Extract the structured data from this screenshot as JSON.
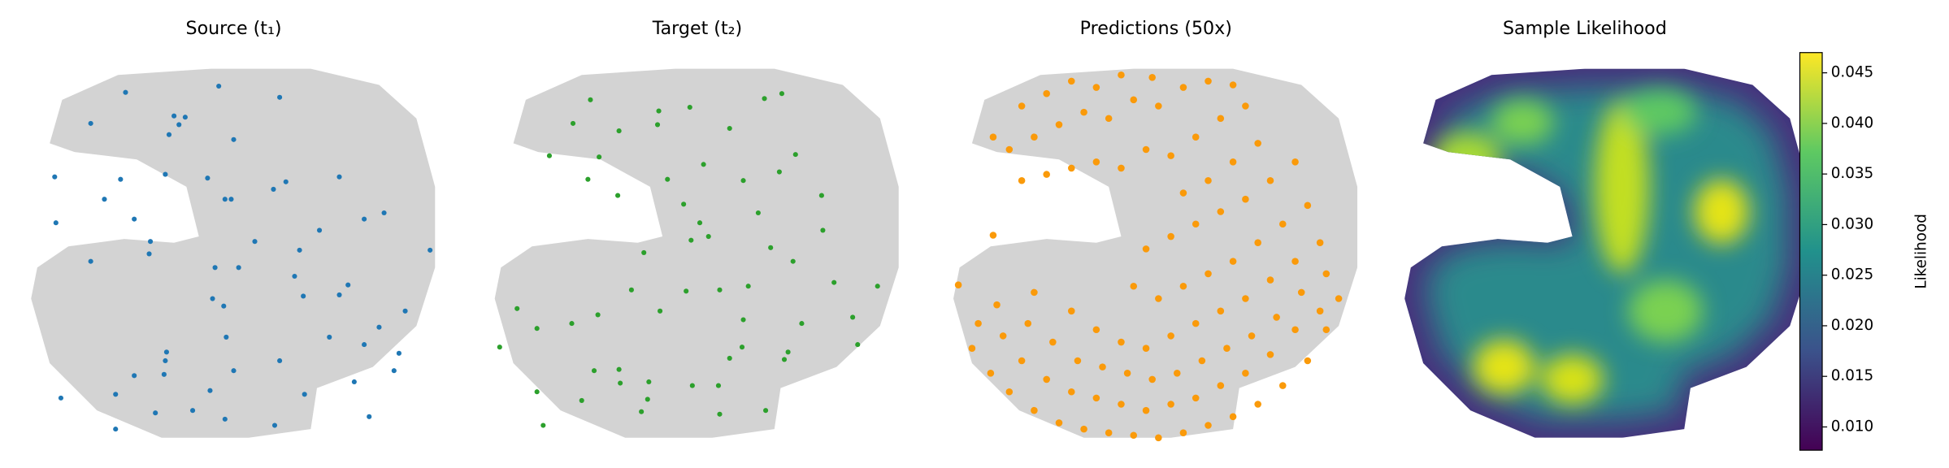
{
  "chart_data": [
    {
      "type": "scatter",
      "title": "Source (t₁)",
      "color": "#1f77b4",
      "xlim": [
        0,
        340
      ],
      "ylim": [
        310,
        0
      ],
      "x": [
        73,
        29,
        105,
        135,
        161,
        201,
        277,
        73,
        88,
        112,
        149,
        225,
        265,
        113,
        114,
        168,
        205,
        297,
        301,
        162,
        245,
        273,
        285,
        306,
        160,
        151,
        224,
        253,
        260,
        217,
        153,
        172,
        53,
        100,
        101,
        185,
        326,
        221,
        237,
        25,
        88,
        273,
        289,
        64,
        161,
        166,
        200,
        210,
        24,
        77,
        113,
        147,
        253,
        168,
        116,
        124,
        129,
        120,
        53,
        205,
        81,
        156
      ],
      "y": [
        15,
        40,
        28,
        30,
        23,
        18,
        25,
        43,
        58,
        59,
        46,
        43,
        53,
        70,
        77,
        62,
        70,
        62,
        76,
        89,
        89,
        83,
        97,
        110,
        114,
        120,
        122,
        123,
        131,
        138,
        145,
        145,
        150,
        156,
        166,
        166,
        159,
        159,
        175,
        181,
        184,
        184,
        189,
        200,
        200,
        200,
        208,
        214,
        218,
        216,
        220,
        217,
        218,
        248,
        252,
        260,
        266,
        267,
        261,
        282,
        286,
        291
      ]
    },
    {
      "type": "scatter",
      "title": "Target (t₂)",
      "color": "#2ca02c",
      "xlim": [
        0,
        340
      ],
      "ylim": [
        310,
        0
      ],
      "x": [
        44,
        75,
        123,
        186,
        223,
        128,
        39,
        106,
        129,
        164,
        185,
        85,
        105,
        9,
        39,
        67,
        88,
        23,
        138,
        194,
        204,
        238,
        241,
        297,
        252,
        205,
        293,
        115,
        159,
        186,
        209,
        313,
        278,
        125,
        163,
        245,
        227,
        177,
        170,
        269,
        157,
        217,
        104,
        268,
        80,
        144,
        205,
        234,
        49,
        89,
        173,
        247,
        105,
        136,
        68,
        194,
        137,
        162,
        82,
        222,
        236
      ],
      "y": [
        18,
        38,
        29,
        27,
        30,
        39,
        45,
        52,
        53,
        50,
        50,
        62,
        63,
        81,
        96,
        100,
        107,
        112,
        110,
        72,
        81,
        71,
        77,
        83,
        100,
        103,
        105,
        127,
        126,
        127,
        130,
        130,
        133,
        157,
        167,
        150,
        161,
        170,
        181,
        175,
        196,
        189,
        203,
        203,
        216,
        216,
        215,
        222,
        235,
        234,
        228,
        236,
        255,
        260,
        261,
        257,
        271,
        274,
        280,
        281,
        285
      ]
    },
    {
      "type": "scatter",
      "title": "Predictions (50x)",
      "color": "#fa9a0a",
      "xlim": [
        0,
        340
      ],
      "ylim": [
        310,
        0
      ],
      "x": [
        20,
        35,
        50,
        70,
        90,
        110,
        130,
        150,
        170,
        190,
        210,
        230,
        250,
        270,
        290,
        305,
        315,
        25,
        45,
        60,
        80,
        100,
        120,
        140,
        160,
        180,
        200,
        220,
        240,
        260,
        280,
        300,
        40,
        65,
        85,
        105,
        125,
        145,
        165,
        185,
        205,
        225,
        245,
        265,
        285,
        305,
        70,
        100,
        120,
        140,
        160,
        180,
        200,
        220,
        240,
        260,
        280,
        300,
        150,
        170,
        190,
        210,
        230,
        250,
        270,
        290,
        160,
        180,
        200,
        220,
        240,
        260,
        280,
        9,
        37,
        37,
        190,
        210,
        230,
        250,
        60,
        80,
        100,
        120,
        140,
        160,
        180,
        200,
        220,
        240,
        50,
        70,
        90,
        110,
        130,
        150,
        170,
        190,
        210,
        230,
        60,
        80,
        100,
        120,
        140,
        165
      ],
      "y": [
        80,
        60,
        45,
        30,
        20,
        15,
        12,
        10,
        8,
        12,
        18,
        25,
        35,
        50,
        70,
        95,
        120,
        100,
        90,
        70,
        55,
        45,
        40,
        35,
        30,
        35,
        40,
        50,
        60,
        75,
        95,
        110,
        115,
        100,
        85,
        70,
        65,
        60,
        55,
        60,
        70,
        80,
        90,
        105,
        125,
        140,
        125,
        110,
        95,
        85,
        80,
        90,
        100,
        110,
        120,
        135,
        150,
        165,
        130,
        120,
        130,
        140,
        150,
        165,
        180,
        195,
        160,
        170,
        180,
        190,
        200,
        215,
        230,
        131,
        171,
        250,
        205,
        215,
        230,
        245,
        215,
        220,
        225,
        230,
        225,
        240,
        235,
        250,
        265,
        275,
        240,
        250,
        260,
        270,
        265,
        280,
        275,
        290,
        295,
        292,
        275,
        285,
        295,
        290,
        300,
        298
      ]
    },
    {
      "type": "heatmap",
      "title": "Sample Likelihood",
      "colorbar_label": "Likelihood",
      "clim": [
        0.0077,
        0.047
      ],
      "colors": [
        "#440154",
        "#3b528b",
        "#21918c",
        "#5ec962",
        "#fde725"
      ],
      "ticks": [
        {
          "value": 0.01,
          "label": "0.010"
        },
        0.015,
        {
          "value": 0.02,
          "label": "0.020"
        },
        0.025,
        {
          "value": 0.03,
          "label": "0.030"
        },
        0.035,
        {
          "value": 0.04,
          "label": "0.040"
        },
        0.045
      ]
    }
  ]
}
